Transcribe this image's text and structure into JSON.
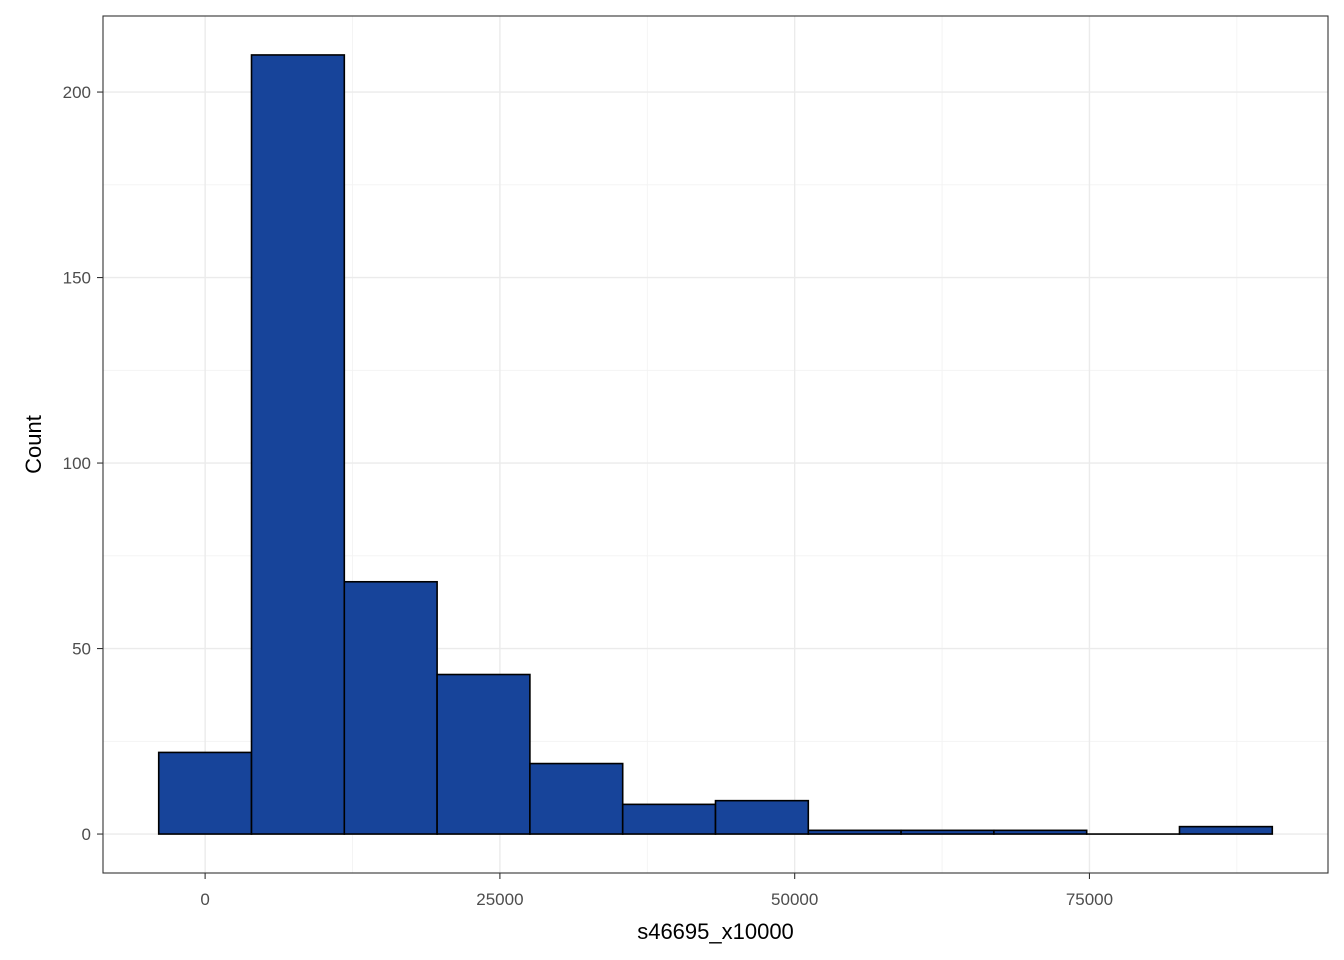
{
  "chart_data": {
    "type": "bar",
    "subtype": "histogram",
    "xlabel": "s46695_x10000",
    "ylabel": "Count",
    "bin_width": 7870,
    "bins": [
      {
        "x0": -3935,
        "x1": 3935,
        "count": 22
      },
      {
        "x0": 3935,
        "x1": 11805,
        "count": 210
      },
      {
        "x0": 11805,
        "x1": 19675,
        "count": 68
      },
      {
        "x0": 19675,
        "x1": 27545,
        "count": 43
      },
      {
        "x0": 27545,
        "x1": 35415,
        "count": 19
      },
      {
        "x0": 35415,
        "x1": 43285,
        "count": 8
      },
      {
        "x0": 43285,
        "x1": 51155,
        "count": 9
      },
      {
        "x0": 51155,
        "x1": 59025,
        "count": 1
      },
      {
        "x0": 59025,
        "x1": 66895,
        "count": 1
      },
      {
        "x0": 66895,
        "x1": 74765,
        "count": 1
      },
      {
        "x0": 74765,
        "x1": 82635,
        "count": 0
      },
      {
        "x0": 82635,
        "x1": 90505,
        "count": 2
      }
    ],
    "xlim": [
      -8660,
      95230
    ],
    "ylim": [
      -10.5,
      220.5
    ],
    "x_ticks": [
      0,
      25000,
      50000,
      75000
    ],
    "x_tick_labels": [
      "0",
      "25000",
      "50000",
      "75000"
    ],
    "y_ticks": [
      0,
      50,
      100,
      150,
      200
    ],
    "y_tick_labels": [
      "0",
      "50",
      "100",
      "150",
      "200"
    ],
    "grid": true,
    "fill_color": "#17449A",
    "edge_color": "#000000"
  }
}
